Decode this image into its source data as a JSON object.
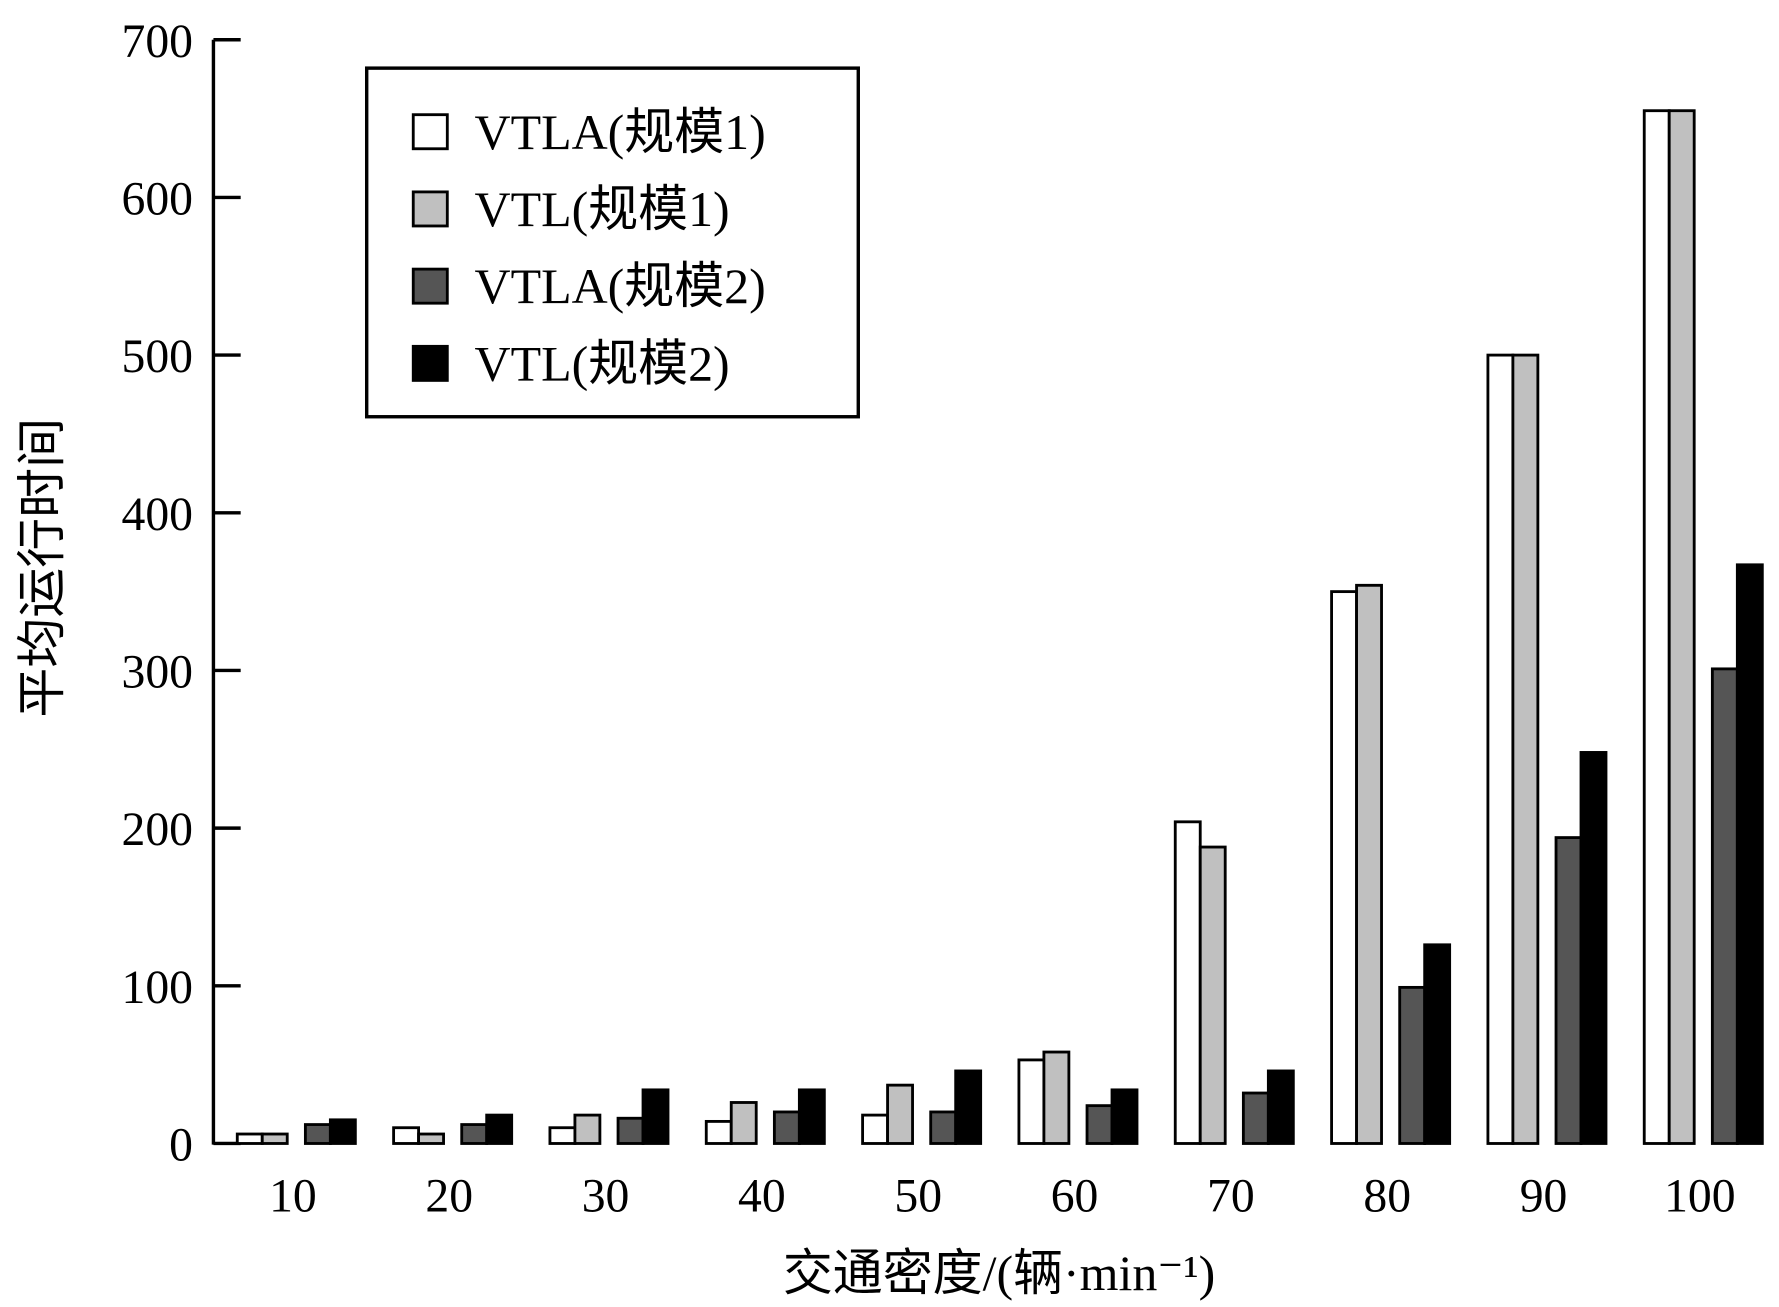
{
  "chart_data": {
    "type": "bar",
    "categories": [
      "10",
      "20",
      "30",
      "40",
      "50",
      "60",
      "70",
      "80",
      "90",
      "100"
    ],
    "series": [
      {
        "name": "VTLA(规模1)",
        "color": "#ffffff",
        "values": [
          6,
          10,
          10,
          14,
          18,
          53,
          204,
          350,
          500,
          655
        ]
      },
      {
        "name": "VTL(规模1)",
        "color": "#c0c0c0",
        "values": [
          6,
          6,
          18,
          26,
          37,
          58,
          188,
          354,
          500,
          655
        ]
      },
      {
        "name": "VTLA(规模2)",
        "color": "#555555",
        "values": [
          12,
          12,
          16,
          20,
          20,
          24,
          32,
          99,
          194,
          301
        ]
      },
      {
        "name": "VTL(规模2)",
        "color": "#000000",
        "values": [
          15,
          18,
          34,
          34,
          46,
          34,
          46,
          126,
          248,
          367
        ]
      }
    ],
    "title": "",
    "xlabel": "交通密度/(辆·min⁻¹)",
    "ylabel": "平均运行时间",
    "ylim": [
      0,
      700
    ],
    "yticks": [
      0,
      100,
      200,
      300,
      400,
      500,
      600,
      700
    ],
    "grid": false,
    "legend": "top-left"
  }
}
